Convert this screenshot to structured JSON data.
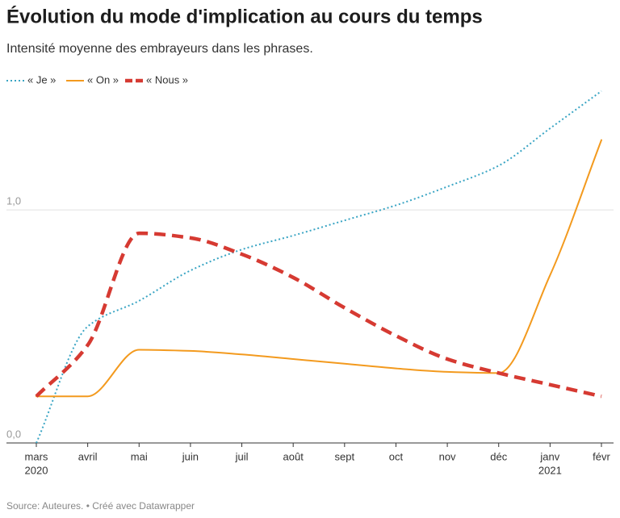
{
  "chart_data": {
    "type": "line",
    "title": "Évolution du mode d'implication au cours du temps",
    "subtitle": "Intensité moyenne des embrayeurs dans les phrases.",
    "source": "Source: Auteures. • Créé avec Datawrapper",
    "categories": [
      "mars",
      "avril",
      "mai",
      "juin",
      "juil",
      "août",
      "sept",
      "oct",
      "nov",
      "déc",
      "janv",
      "févr"
    ],
    "year_labels": [
      "2020",
      null,
      null,
      null,
      null,
      null,
      null,
      null,
      null,
      null,
      "2021",
      null
    ],
    "series": [
      {
        "name": "« Je »",
        "color": "#3aa5c4",
        "dash": "dotted",
        "values": [
          0,
          0.5,
          0.61,
          0.74,
          0.83,
          0.89,
          0.955,
          1.02,
          1.1,
          1.19,
          1.35,
          1.51
        ]
      },
      {
        "name": "« On »",
        "color": "#f39a1e",
        "dash": "solid",
        "values": [
          0.2,
          0.2,
          0.4,
          0.395,
          0.38,
          0.36,
          0.34,
          0.32,
          0.305,
          0.3,
          0.72,
          1.3
        ]
      },
      {
        "name": "« Nous »",
        "color": "#d63a32",
        "dash": "dashed",
        "values": [
          0.2,
          0.42,
          0.9,
          0.88,
          0.81,
          0.71,
          0.58,
          0.46,
          0.36,
          0.3,
          0.25,
          0.2
        ]
      }
    ],
    "ylim": [
      0,
      1.52
    ],
    "yticks": [
      {
        "value": 0,
        "label": "0,0"
      },
      {
        "value": 1,
        "label": "1,0"
      }
    ],
    "grid": true,
    "legend": "top"
  }
}
